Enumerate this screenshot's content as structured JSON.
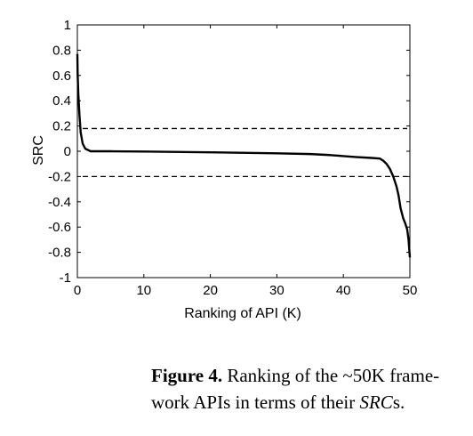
{
  "chart_data": {
    "type": "line",
    "xlabel": "Ranking of API (K)",
    "ylabel": "SRC",
    "xlim": [
      0,
      50
    ],
    "ylim": [
      -1,
      1
    ],
    "x_ticks": [
      "0",
      "10",
      "20",
      "30",
      "40",
      "50"
    ],
    "y_ticks": [
      "1",
      "0.8",
      "0.6",
      "0.4",
      "0.2",
      "0",
      "-0.2",
      "-0.4",
      "-0.6",
      "-0.8",
      "-1"
    ],
    "grid": false,
    "series": [
      {
        "x": [
          0,
          0.05,
          0.15,
          0.3,
          0.5,
          0.8,
          1.2,
          2,
          5,
          10,
          20,
          30,
          35,
          38,
          40,
          42,
          44,
          45.5,
          46,
          46.5,
          47,
          47.5,
          48,
          48.3,
          48.6,
          49,
          49.3,
          49.6,
          49.8,
          50
        ],
        "y": [
          0.77,
          0.6,
          0.45,
          0.3,
          0.15,
          0.06,
          0.02,
          0.0,
          0.0,
          -0.002,
          -0.008,
          -0.016,
          -0.022,
          -0.03,
          -0.038,
          -0.046,
          -0.052,
          -0.058,
          -0.075,
          -0.1,
          -0.14,
          -0.2,
          -0.28,
          -0.35,
          -0.45,
          -0.53,
          -0.57,
          -0.62,
          -0.7,
          -0.84
        ]
      }
    ],
    "reference_lines": [
      {
        "y": 0.18,
        "style": "dashed"
      },
      {
        "y": -0.2,
        "style": "dashed"
      }
    ]
  },
  "caption": {
    "label": "Figure 4.",
    "text_before": " Ranking of the ~50K frame-work APIs in terms of their ",
    "emph": "SRC",
    "text_after": "s."
  }
}
